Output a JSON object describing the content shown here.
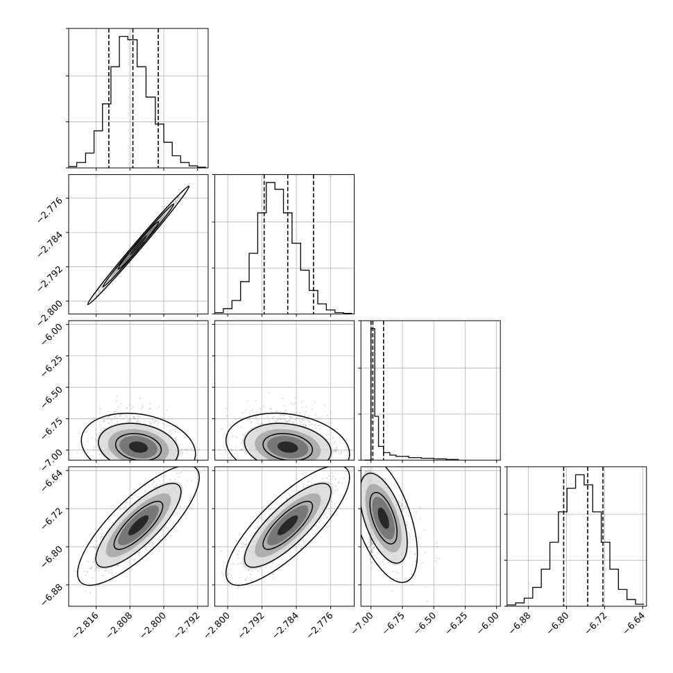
{
  "chart_data": {
    "type": "corner",
    "title": "",
    "grid": true,
    "parameters": [
      {
        "range": [
          -2.8225,
          -2.7895
        ],
        "ticks": [
          -2.816,
          -2.808,
          -2.8,
          -2.792
        ],
        "tick_labels": [
          "−2.816",
          "−2.808",
          "−2.800",
          "−2.792"
        ]
      },
      {
        "range": [
          -2.803,
          -2.7705
        ],
        "ticks": [
          -2.8,
          -2.792,
          -2.784,
          -2.776
        ],
        "tick_labels": [
          "−2.800",
          "−2.792",
          "−2.784",
          "−2.776"
        ]
      },
      {
        "range": [
          -7.08,
          -5.97
        ],
        "ticks": [
          -7.0,
          -6.75,
          -6.5,
          -6.25,
          -6.0
        ],
        "tick_labels": [
          "−7.00",
          "−6.75",
          "−6.50",
          "−6.25",
          "−6.00"
        ]
      },
      {
        "range": [
          -6.925,
          -6.632
        ],
        "ticks": [
          -6.88,
          -6.8,
          -6.72,
          -6.64
        ],
        "tick_labels": [
          "−6.88",
          "−6.80",
          "−6.72",
          "−6.64"
        ]
      }
    ],
    "histograms": [
      {
        "parameter": 0,
        "quantiles": [
          -2.813,
          -2.8073,
          -2.8013
        ],
        "bin_edges": [
          -2.8225,
          -2.8206,
          -2.8185,
          -2.8165,
          -2.8145,
          -2.8125,
          -2.8105,
          -2.8085,
          -2.8063,
          -2.8042,
          -2.802,
          -2.8,
          -2.798,
          -2.796,
          -2.794,
          -2.792,
          -2.79
        ],
        "counts": [
          2,
          8,
          22,
          55,
          95,
          150,
          195,
          190,
          150,
          105,
          65,
          38,
          18,
          8,
          3,
          1
        ]
      },
      {
        "parameter": 1,
        "quantiles": [
          -2.7915,
          -2.786,
          -2.78
        ],
        "bin_edges": [
          -2.803,
          -2.801,
          -2.799,
          -2.797,
          -2.795,
          -2.793,
          -2.791,
          -2.789,
          -2.787,
          -2.785,
          -2.783,
          -2.781,
          -2.779,
          -2.777,
          -2.775,
          -2.773,
          -2.771
        ],
        "counts": [
          2,
          8,
          20,
          48,
          90,
          150,
          195,
          185,
          150,
          105,
          65,
          35,
          15,
          6,
          2,
          1
        ]
      },
      {
        "parameter": 2,
        "quantiles": [
          -7.0,
          -6.985,
          -6.9
        ],
        "bin_edges": [
          -7.05,
          -7.0,
          -6.97,
          -6.94,
          -6.9,
          -6.85,
          -6.8,
          -6.7,
          -6.6,
          -6.5,
          -6.4,
          -6.3
        ],
        "counts": [
          0,
          210,
          70,
          22,
          12,
          8,
          6,
          4,
          3,
          2,
          1
        ]
      },
      {
        "parameter": 3,
        "quantiles": [
          -6.806,
          -6.7555,
          -6.7235
        ],
        "bin_edges": [
          -6.925,
          -6.907,
          -6.889,
          -6.871,
          -6.853,
          -6.835,
          -6.817,
          -6.799,
          -6.781,
          -6.763,
          -6.745,
          -6.727,
          -6.709,
          -6.691,
          -6.673,
          -6.655,
          -6.637
        ],
        "counts": [
          2,
          5,
          12,
          28,
          55,
          95,
          140,
          175,
          195,
          180,
          140,
          95,
          55,
          25,
          10,
          3
        ]
      }
    ],
    "pairs": [
      {
        "x": 0,
        "y": 1,
        "center": [
          -2.806,
          -2.787
        ],
        "corr": 0.995,
        "sx": 0.004,
        "sy": 0.0046
      },
      {
        "x": 0,
        "y": 2,
        "center": [
          -2.806,
          -6.99
        ],
        "corr": -0.2,
        "sx": 0.0045,
        "sy": 0.09,
        "skew_y": 1
      },
      {
        "x": 1,
        "y": 2,
        "center": [
          -2.786,
          -6.99
        ],
        "corr": -0.2,
        "sx": 0.0048,
        "sy": 0.09,
        "skew_y": 1
      },
      {
        "x": 0,
        "y": 3,
        "center": [
          -2.806,
          -6.755
        ],
        "corr": 0.8,
        "sx": 0.0048,
        "sy": 0.042
      },
      {
        "x": 1,
        "y": 3,
        "center": [
          -2.786,
          -6.755
        ],
        "corr": 0.8,
        "sx": 0.0048,
        "sy": 0.042
      },
      {
        "x": 2,
        "y": 3,
        "center": [
          -6.99,
          -6.74
        ],
        "corr": -0.55,
        "sx": 0.09,
        "sy": 0.045,
        "skew_x": 1
      }
    ]
  }
}
